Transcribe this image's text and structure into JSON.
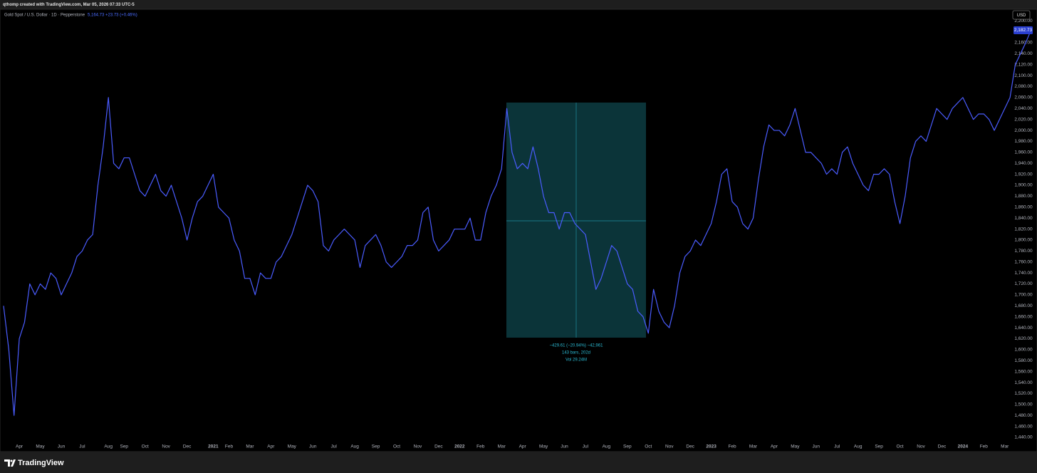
{
  "header": {
    "credit": "qthomp created with TradingView.com, Mar 05, 2026 07:33 UTC-5"
  },
  "footer": {
    "brand": "TradingView"
  },
  "chart_data": {
    "type": "line",
    "currency": "USD",
    "quote": {
      "price": "5,164.73",
      "change": "+23.73 (+0.46%)"
    },
    "last_price_label": "2,182.73",
    "measure": [
      "−429.61 (−20.94%) −42,961",
      "143 bars, 202d",
      "Vol 29.24M"
    ],
    "grid": false,
    "ylim": [
      1414,
      2221
    ],
    "yticks": [
      {
        "value": 1440,
        "label": "1,440.00"
      },
      {
        "value": 1460,
        "label": "1,460.00"
      },
      {
        "value": 1480,
        "label": "1,480.00"
      },
      {
        "value": 1500,
        "label": "1,500.00"
      },
      {
        "value": 1520,
        "label": "1,520.00"
      },
      {
        "value": 1540,
        "label": "1,540.00"
      },
      {
        "value": 1560,
        "label": "1,560.00"
      },
      {
        "value": 1580,
        "label": "1,580.00"
      },
      {
        "value": 1600,
        "label": "1,600.00"
      },
      {
        "value": 1620,
        "label": "1,620.00"
      },
      {
        "value": 1640,
        "label": "1,640.00"
      },
      {
        "value": 1660,
        "label": "1,660.00"
      },
      {
        "value": 1680,
        "label": "1,680.00"
      },
      {
        "value": 1700,
        "label": "1,700.00"
      },
      {
        "value": 1720,
        "label": "1,720.00"
      },
      {
        "value": 1740,
        "label": "1,740.00"
      },
      {
        "value": 1760,
        "label": "1,760.00"
      },
      {
        "value": 1780,
        "label": "1,780.00"
      },
      {
        "value": 1800,
        "label": "1,800.00"
      },
      {
        "value": 1820,
        "label": "1,820.00"
      },
      {
        "value": 1840,
        "label": "1,840.00"
      },
      {
        "value": 1860,
        "label": "1,860.00"
      },
      {
        "value": 1880,
        "label": "1,880.00"
      },
      {
        "value": 1900,
        "label": "1,900.00"
      },
      {
        "value": 1920,
        "label": "1,920.00"
      },
      {
        "value": 1940,
        "label": "1,940.00"
      },
      {
        "value": 1960,
        "label": "1,960.00"
      },
      {
        "value": 1980,
        "label": "1,980.00"
      },
      {
        "value": 2000,
        "label": "2,000.00"
      },
      {
        "value": 2020,
        "label": "2,020.00"
      },
      {
        "value": 2040,
        "label": "2,040.00"
      },
      {
        "value": 2060,
        "label": "2,060.00"
      },
      {
        "value": 2080,
        "label": "2,080.00"
      },
      {
        "value": 2100,
        "label": "2,100.00"
      },
      {
        "value": 2120,
        "label": "2,120.00"
      },
      {
        "value": 2140,
        "label": "2,140.00"
      },
      {
        "value": 2160,
        "label": "2,160.00"
      },
      {
        "value": 2180,
        "label": "2,180.00"
      },
      {
        "value": 2200,
        "label": "2,200.00"
      }
    ],
    "categories": [
      null,
      null,
      null,
      "Apr",
      null,
      null,
      null,
      "May",
      null,
      null,
      null,
      "Jun",
      null,
      null,
      null,
      "Jul",
      null,
      null,
      null,
      null,
      "Aug",
      null,
      null,
      "Sep",
      null,
      null,
      null,
      "Oct",
      null,
      null,
      null,
      "Nov",
      null,
      null,
      null,
      "Dec",
      null,
      null,
      null,
      null,
      "2021",
      null,
      null,
      "Feb",
      null,
      null,
      null,
      "Mar",
      null,
      null,
      null,
      "Apr",
      null,
      null,
      null,
      "May",
      null,
      null,
      null,
      "Jun",
      null,
      null,
      null,
      "Jul",
      null,
      null,
      null,
      "Aug",
      null,
      null,
      null,
      "Sep",
      null,
      null,
      null,
      "Oct",
      null,
      null,
      null,
      "Nov",
      null,
      null,
      null,
      "Dec",
      null,
      null,
      null,
      "2022",
      null,
      null,
      null,
      "Feb",
      null,
      null,
      null,
      "Mar",
      null,
      null,
      null,
      "Apr",
      null,
      null,
      null,
      "May",
      null,
      null,
      null,
      "Jun",
      null,
      null,
      null,
      "Jul",
      null,
      null,
      null,
      "Aug",
      null,
      null,
      null,
      "Sep",
      null,
      null,
      null,
      "Oct",
      null,
      null,
      null,
      "Nov",
      null,
      null,
      null,
      "Dec",
      null,
      null,
      null,
      "2023",
      null,
      null,
      null,
      "Feb",
      null,
      null,
      null,
      "Mar",
      null,
      null,
      null,
      "Apr",
      null,
      null,
      null,
      "May",
      null,
      null,
      null,
      "Jun",
      null,
      null,
      null,
      "Jul",
      null,
      null,
      null,
      "Aug",
      null,
      null,
      null,
      "Sep",
      null,
      null,
      null,
      "Oct",
      null,
      null,
      null,
      "Nov",
      null,
      null,
      null,
      "Dec",
      null,
      null,
      null,
      "2024",
      null,
      null,
      null,
      "Feb",
      null,
      null,
      null,
      "Mar",
      null,
      null,
      null,
      null,
      null
    ],
    "series": [
      {
        "name": "Gold Spot / U.S. Dollar · 1D · Pepperstone",
        "color": "#4a5cff",
        "values": [
          1680,
          1600,
          1480,
          1620,
          1650,
          1720,
          1700,
          1720,
          1710,
          1740,
          1730,
          1700,
          1720,
          1740,
          1770,
          1780,
          1800,
          1810,
          1900,
          1970,
          2060,
          1940,
          1930,
          1950,
          1950,
          1920,
          1890,
          1880,
          1900,
          1920,
          1890,
          1880,
          1900,
          1870,
          1840,
          1800,
          1840,
          1870,
          1880,
          1900,
          1920,
          1860,
          1850,
          1840,
          1800,
          1780,
          1730,
          1730,
          1700,
          1740,
          1730,
          1730,
          1760,
          1770,
          1790,
          1810,
          1840,
          1870,
          1900,
          1890,
          1870,
          1790,
          1780,
          1800,
          1810,
          1820,
          1810,
          1800,
          1750,
          1790,
          1800,
          1810,
          1790,
          1760,
          1750,
          1760,
          1770,
          1790,
          1790,
          1800,
          1850,
          1860,
          1800,
          1780,
          1790,
          1800,
          1820,
          1820,
          1820,
          1840,
          1800,
          1800,
          1850,
          1880,
          1900,
          1930,
          2040,
          1960,
          1930,
          1940,
          1930,
          1970,
          1930,
          1880,
          1850,
          1850,
          1820,
          1850,
          1850,
          1830,
          1820,
          1810,
          1760,
          1710,
          1730,
          1760,
          1790,
          1780,
          1750,
          1720,
          1710,
          1670,
          1660,
          1630,
          1710,
          1670,
          1650,
          1640,
          1680,
          1740,
          1770,
          1780,
          1800,
          1790,
          1810,
          1830,
          1870,
          1920,
          1930,
          1870,
          1860,
          1830,
          1820,
          1840,
          1910,
          1970,
          2010,
          2000,
          2000,
          1990,
          2010,
          2040,
          2000,
          1960,
          1960,
          1950,
          1940,
          1920,
          1930,
          1920,
          1960,
          1970,
          1940,
          1920,
          1900,
          1890,
          1920,
          1920,
          1930,
          1920,
          1870,
          1830,
          1880,
          1950,
          1980,
          1990,
          1980,
          2010,
          2040,
          2030,
          2020,
          2040,
          2050,
          2060,
          2040,
          2020,
          2030,
          2030,
          2020,
          2000,
          2020,
          2040,
          2060,
          2120,
          2140,
          2160,
          2182.73
        ]
      }
    ]
  }
}
